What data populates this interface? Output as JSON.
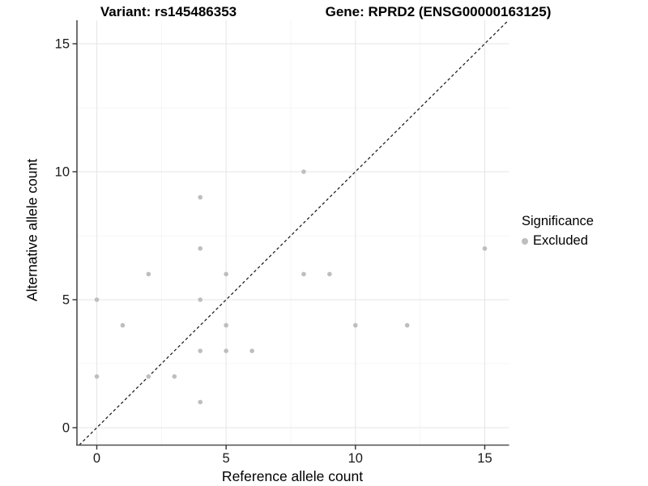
{
  "titles": {
    "variant": "Variant: rs145486353",
    "gene": "Gene: RPRD2 (ENSG00000163125)"
  },
  "chart_data": {
    "type": "scatter",
    "title_left": "Variant: rs145486353",
    "title_right": "Gene: RPRD2 (ENSG00000163125)",
    "xlabel": "Reference allele count",
    "ylabel": "Alternative allele count",
    "xticks": [
      0,
      5,
      10,
      15
    ],
    "yticks": [
      0,
      5,
      10,
      15
    ],
    "minor_ticks": [
      2.5,
      7.5,
      12.5
    ],
    "xlim": [
      -0.77,
      15.92
    ],
    "ylim": [
      -0.68,
      15.89
    ],
    "grid": true,
    "colors": {
      "point": "#bebebe",
      "major_grid": "#e6e6e6",
      "minor_grid": "#f2f2f2",
      "axis_line": "#4d4d4d",
      "tick_mark": "#333333",
      "tick_label": "#1a1a1a",
      "reference_line": "#1a1a1a"
    },
    "reference_line": {
      "type": "identity",
      "style": "dashed"
    },
    "legend": {
      "title": "Significance",
      "position": "right",
      "items": [
        {
          "label": "Excluded",
          "color": "#bebebe"
        }
      ]
    },
    "series": [
      {
        "name": "Excluded",
        "color": "#bebebe",
        "points": [
          [
            0,
            2
          ],
          [
            0,
            5
          ],
          [
            1,
            4
          ],
          [
            2,
            2
          ],
          [
            2,
            6
          ],
          [
            3,
            2
          ],
          [
            4,
            1
          ],
          [
            4,
            3
          ],
          [
            4,
            5
          ],
          [
            4,
            7
          ],
          [
            4,
            9
          ],
          [
            5,
            3
          ],
          [
            5,
            4
          ],
          [
            5,
            6
          ],
          [
            6,
            3
          ],
          [
            8,
            6
          ],
          [
            8,
            10
          ],
          [
            9,
            6
          ],
          [
            10,
            4
          ],
          [
            12,
            4
          ],
          [
            15,
            7
          ]
        ]
      }
    ]
  }
}
